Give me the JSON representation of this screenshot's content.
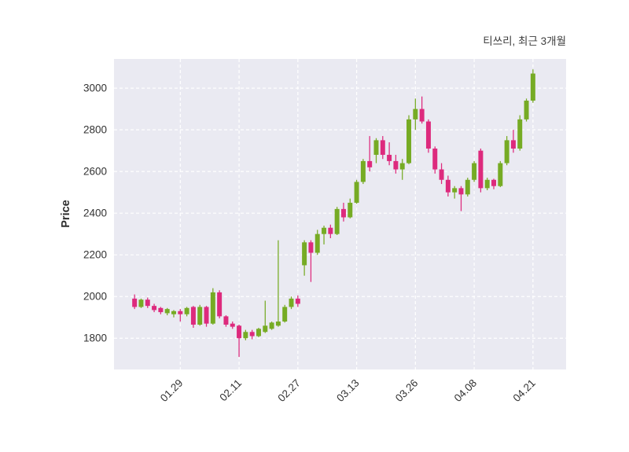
{
  "chart_data": {
    "type": "candlestick",
    "title": "티쓰리, 최근 3개월",
    "ylabel": "Price",
    "xlabel": "",
    "legend": "none",
    "grid": "dashed-white-both-axes",
    "plot_bg": "#eaeaf2",
    "grid_color": "#ffffff",
    "up_color": "#76ab24",
    "down_color": "#dd2a7d",
    "text_color": "#333333",
    "ylim": [
      1650,
      3140
    ],
    "yticks": [
      1800,
      2000,
      2200,
      2400,
      2600,
      2800,
      3000
    ],
    "xticks": [
      {
        "index": 7,
        "label": "01.29"
      },
      {
        "index": 16,
        "label": "02.11"
      },
      {
        "index": 25,
        "label": "02.27"
      },
      {
        "index": 34,
        "label": "03.13"
      },
      {
        "index": 43,
        "label": "03.26"
      },
      {
        "index": 52,
        "label": "04.08"
      },
      {
        "index": 61,
        "label": "04.21"
      }
    ],
    "candles_format": [
      "open",
      "high",
      "low",
      "close"
    ],
    "candles": [
      [
        1990,
        2010,
        1940,
        1950
      ],
      [
        1950,
        1990,
        1945,
        1985
      ],
      [
        1985,
        1995,
        1945,
        1955
      ],
      [
        1955,
        1965,
        1925,
        1935
      ],
      [
        1945,
        1950,
        1915,
        1925
      ],
      [
        1920,
        1945,
        1910,
        1940
      ],
      [
        1915,
        1935,
        1900,
        1930
      ],
      [
        1930,
        1940,
        1880,
        1915
      ],
      [
        1915,
        1950,
        1905,
        1945
      ],
      [
        1950,
        1955,
        1850,
        1865
      ],
      [
        1865,
        1960,
        1860,
        1950
      ],
      [
        1950,
        1955,
        1855,
        1870
      ],
      [
        1870,
        2040,
        1865,
        2020
      ],
      [
        2020,
        2030,
        1895,
        1905
      ],
      [
        1905,
        1910,
        1855,
        1865
      ],
      [
        1870,
        1880,
        1845,
        1855
      ],
      [
        1860,
        1865,
        1710,
        1800
      ],
      [
        1800,
        1840,
        1790,
        1830
      ],
      [
        1830,
        1840,
        1795,
        1810
      ],
      [
        1810,
        1850,
        1805,
        1845
      ],
      [
        1830,
        1980,
        1825,
        1860
      ],
      [
        1845,
        1880,
        1840,
        1875
      ],
      [
        1860,
        2270,
        1855,
        1880
      ],
      [
        1880,
        1960,
        1875,
        1950
      ],
      [
        1950,
        2000,
        1940,
        1990
      ],
      [
        1990,
        2005,
        1950,
        1965
      ],
      [
        2150,
        2270,
        2100,
        2260
      ],
      [
        2260,
        2270,
        2070,
        2210
      ],
      [
        2210,
        2320,
        2200,
        2300
      ],
      [
        2300,
        2340,
        2250,
        2330
      ],
      [
        2330,
        2345,
        2280,
        2300
      ],
      [
        2300,
        2430,
        2295,
        2420
      ],
      [
        2420,
        2450,
        2360,
        2380
      ],
      [
        2380,
        2470,
        2375,
        2450
      ],
      [
        2450,
        2560,
        2445,
        2550
      ],
      [
        2550,
        2660,
        2540,
        2650
      ],
      [
        2650,
        2770,
        2600,
        2620
      ],
      [
        2680,
        2760,
        2640,
        2750
      ],
      [
        2750,
        2770,
        2660,
        2680
      ],
      [
        2680,
        2740,
        2630,
        2650
      ],
      [
        2650,
        2680,
        2590,
        2610
      ],
      [
        2610,
        2660,
        2560,
        2640
      ],
      [
        2640,
        2870,
        2635,
        2850
      ],
      [
        2850,
        2950,
        2800,
        2900
      ],
      [
        2900,
        2960,
        2830,
        2840
      ],
      [
        2840,
        2850,
        2690,
        2710
      ],
      [
        2710,
        2720,
        2590,
        2610
      ],
      [
        2610,
        2640,
        2540,
        2560
      ],
      [
        2560,
        2580,
        2480,
        2500
      ],
      [
        2500,
        2530,
        2470,
        2520
      ],
      [
        2520,
        2530,
        2410,
        2490
      ],
      [
        2490,
        2570,
        2480,
        2560
      ],
      [
        2560,
        2650,
        2550,
        2640
      ],
      [
        2700,
        2710,
        2500,
        2520
      ],
      [
        2520,
        2570,
        2510,
        2560
      ],
      [
        2560,
        2565,
        2515,
        2530
      ],
      [
        2530,
        2650,
        2525,
        2640
      ],
      [
        2640,
        2770,
        2630,
        2750
      ],
      [
        2750,
        2800,
        2690,
        2710
      ],
      [
        2710,
        2870,
        2700,
        2850
      ],
      [
        2850,
        2950,
        2840,
        2940
      ],
      [
        2940,
        3090,
        2930,
        3070
      ]
    ]
  }
}
